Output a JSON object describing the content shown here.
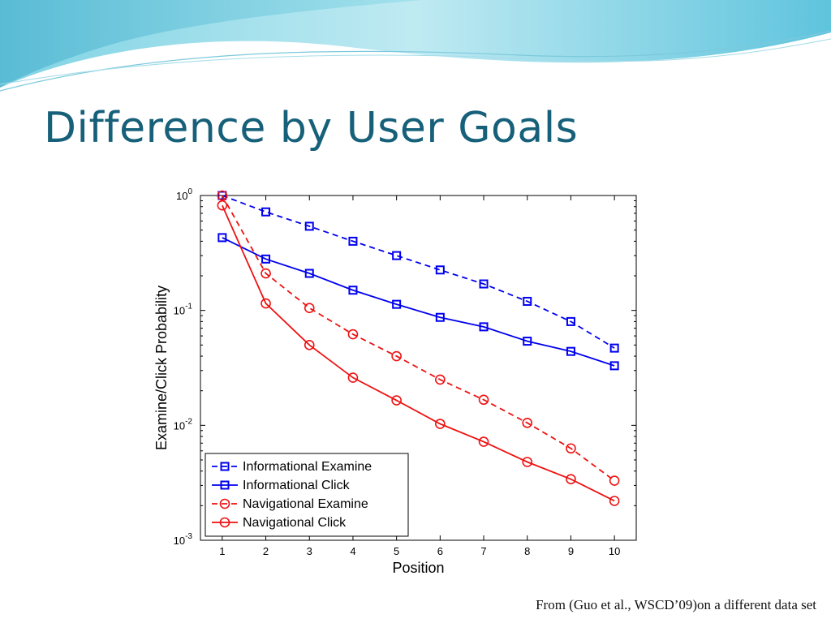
{
  "slide": {
    "title": "Difference by User Goals",
    "citation": "From (Guo et al., WSCD’09)on a different data set",
    "title_color": "#17607a"
  },
  "chart_data": {
    "type": "line",
    "title": "",
    "xlabel": "Position",
    "ylabel": "Examine/Click Probability",
    "x": [
      1,
      2,
      3,
      4,
      5,
      6,
      7,
      8,
      9,
      10
    ],
    "xlim": [
      0.5,
      10.5
    ],
    "ylim": [
      0.001,
      1
    ],
    "yscale": "log",
    "y_ticks": [
      {
        "base": "10",
        "exp": "0"
      },
      {
        "base": "10",
        "exp": "-1"
      },
      {
        "base": "10",
        "exp": "-2"
      },
      {
        "base": "10",
        "exp": "-3"
      }
    ],
    "grid": false,
    "legend_position": "bottom-left",
    "series": [
      {
        "name": "Informational Examine",
        "color": "#0000ee",
        "line": "dashed",
        "marker": "square",
        "values": [
          1.0,
          0.72,
          0.54,
          0.4,
          0.3,
          0.225,
          0.17,
          0.12,
          0.08,
          0.047
        ]
      },
      {
        "name": "Informational Click",
        "color": "#0000ee",
        "line": "solid",
        "marker": "square",
        "values": [
          0.43,
          0.28,
          0.21,
          0.15,
          0.113,
          0.087,
          0.072,
          0.054,
          0.044,
          0.033
        ]
      },
      {
        "name": "Navigational Examine",
        "color": "#ee1111",
        "line": "dashed",
        "marker": "circle",
        "values": [
          1.0,
          0.21,
          0.105,
          0.062,
          0.04,
          0.025,
          0.0167,
          0.0105,
          0.0063,
          0.0033
        ]
      },
      {
        "name": "Navigational Click",
        "color": "#ee1111",
        "line": "solid",
        "marker": "circle",
        "values": [
          0.82,
          0.115,
          0.05,
          0.026,
          0.0165,
          0.0103,
          0.0072,
          0.0048,
          0.0034,
          0.0022
        ]
      }
    ]
  }
}
